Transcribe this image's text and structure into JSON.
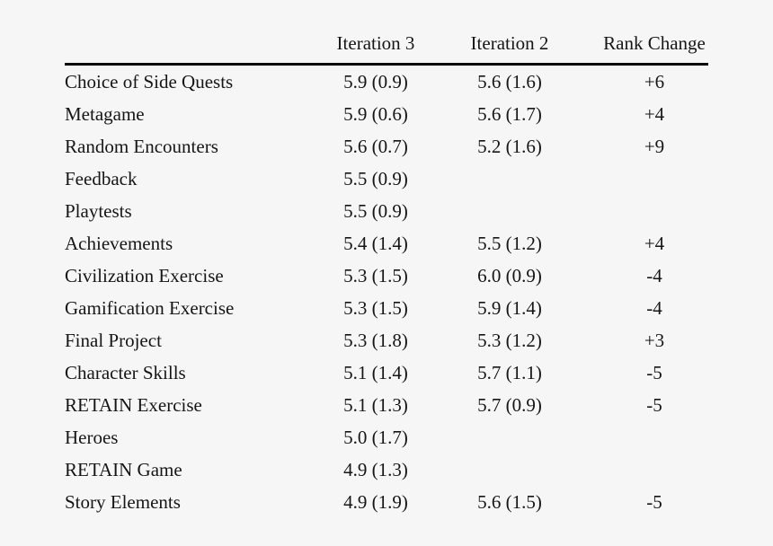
{
  "page": {
    "background_color": "#f6f6f6",
    "text_color": "#161616",
    "rule_color": "#0a0a0a"
  },
  "table": {
    "columns": [
      "",
      "Iteration 3",
      "Iteration 2",
      "Rank Change"
    ],
    "rows": [
      {
        "label": "Choice of Side Quests",
        "iteration3": "5.9 (0.9)",
        "iteration2": "5.6 (1.6)",
        "rank_change": "+6"
      },
      {
        "label": "Metagame",
        "iteration3": "5.9 (0.6)",
        "iteration2": "5.6 (1.7)",
        "rank_change": "+4"
      },
      {
        "label": "Random Encounters",
        "iteration3": "5.6 (0.7)",
        "iteration2": "5.2 (1.6)",
        "rank_change": "+9"
      },
      {
        "label": "Feedback",
        "iteration3": "5.5 (0.9)",
        "iteration2": "",
        "rank_change": ""
      },
      {
        "label": "Playtests",
        "iteration3": "5.5 (0.9)",
        "iteration2": "",
        "rank_change": ""
      },
      {
        "label": "Achievements",
        "iteration3": "5.4 (1.4)",
        "iteration2": "5.5 (1.2)",
        "rank_change": "+4"
      },
      {
        "label": "Civilization Exercise",
        "iteration3": "5.3 (1.5)",
        "iteration2": "6.0 (0.9)",
        "rank_change": "-4"
      },
      {
        "label": "Gamification Exercise",
        "iteration3": "5.3 (1.5)",
        "iteration2": "5.9 (1.4)",
        "rank_change": "-4"
      },
      {
        "label": "Final Project",
        "iteration3": "5.3 (1.8)",
        "iteration2": "5.3 (1.2)",
        "rank_change": "+3"
      },
      {
        "label": "Character Skills",
        "iteration3": "5.1 (1.4)",
        "iteration2": "5.7 (1.1)",
        "rank_change": "-5"
      },
      {
        "label": "RETAIN Exercise",
        "iteration3": "5.1 (1.3)",
        "iteration2": "5.7 (0.9)",
        "rank_change": "-5"
      },
      {
        "label": "Heroes",
        "iteration3": "5.0 (1.7)",
        "iteration2": "",
        "rank_change": ""
      },
      {
        "label": "RETAIN Game",
        "iteration3": "4.9 (1.3)",
        "iteration2": "",
        "rank_change": ""
      },
      {
        "label": "Story Elements",
        "iteration3": "4.9 (1.9)",
        "iteration2": "5.6 (1.5)",
        "rank_change": "-5"
      }
    ]
  }
}
